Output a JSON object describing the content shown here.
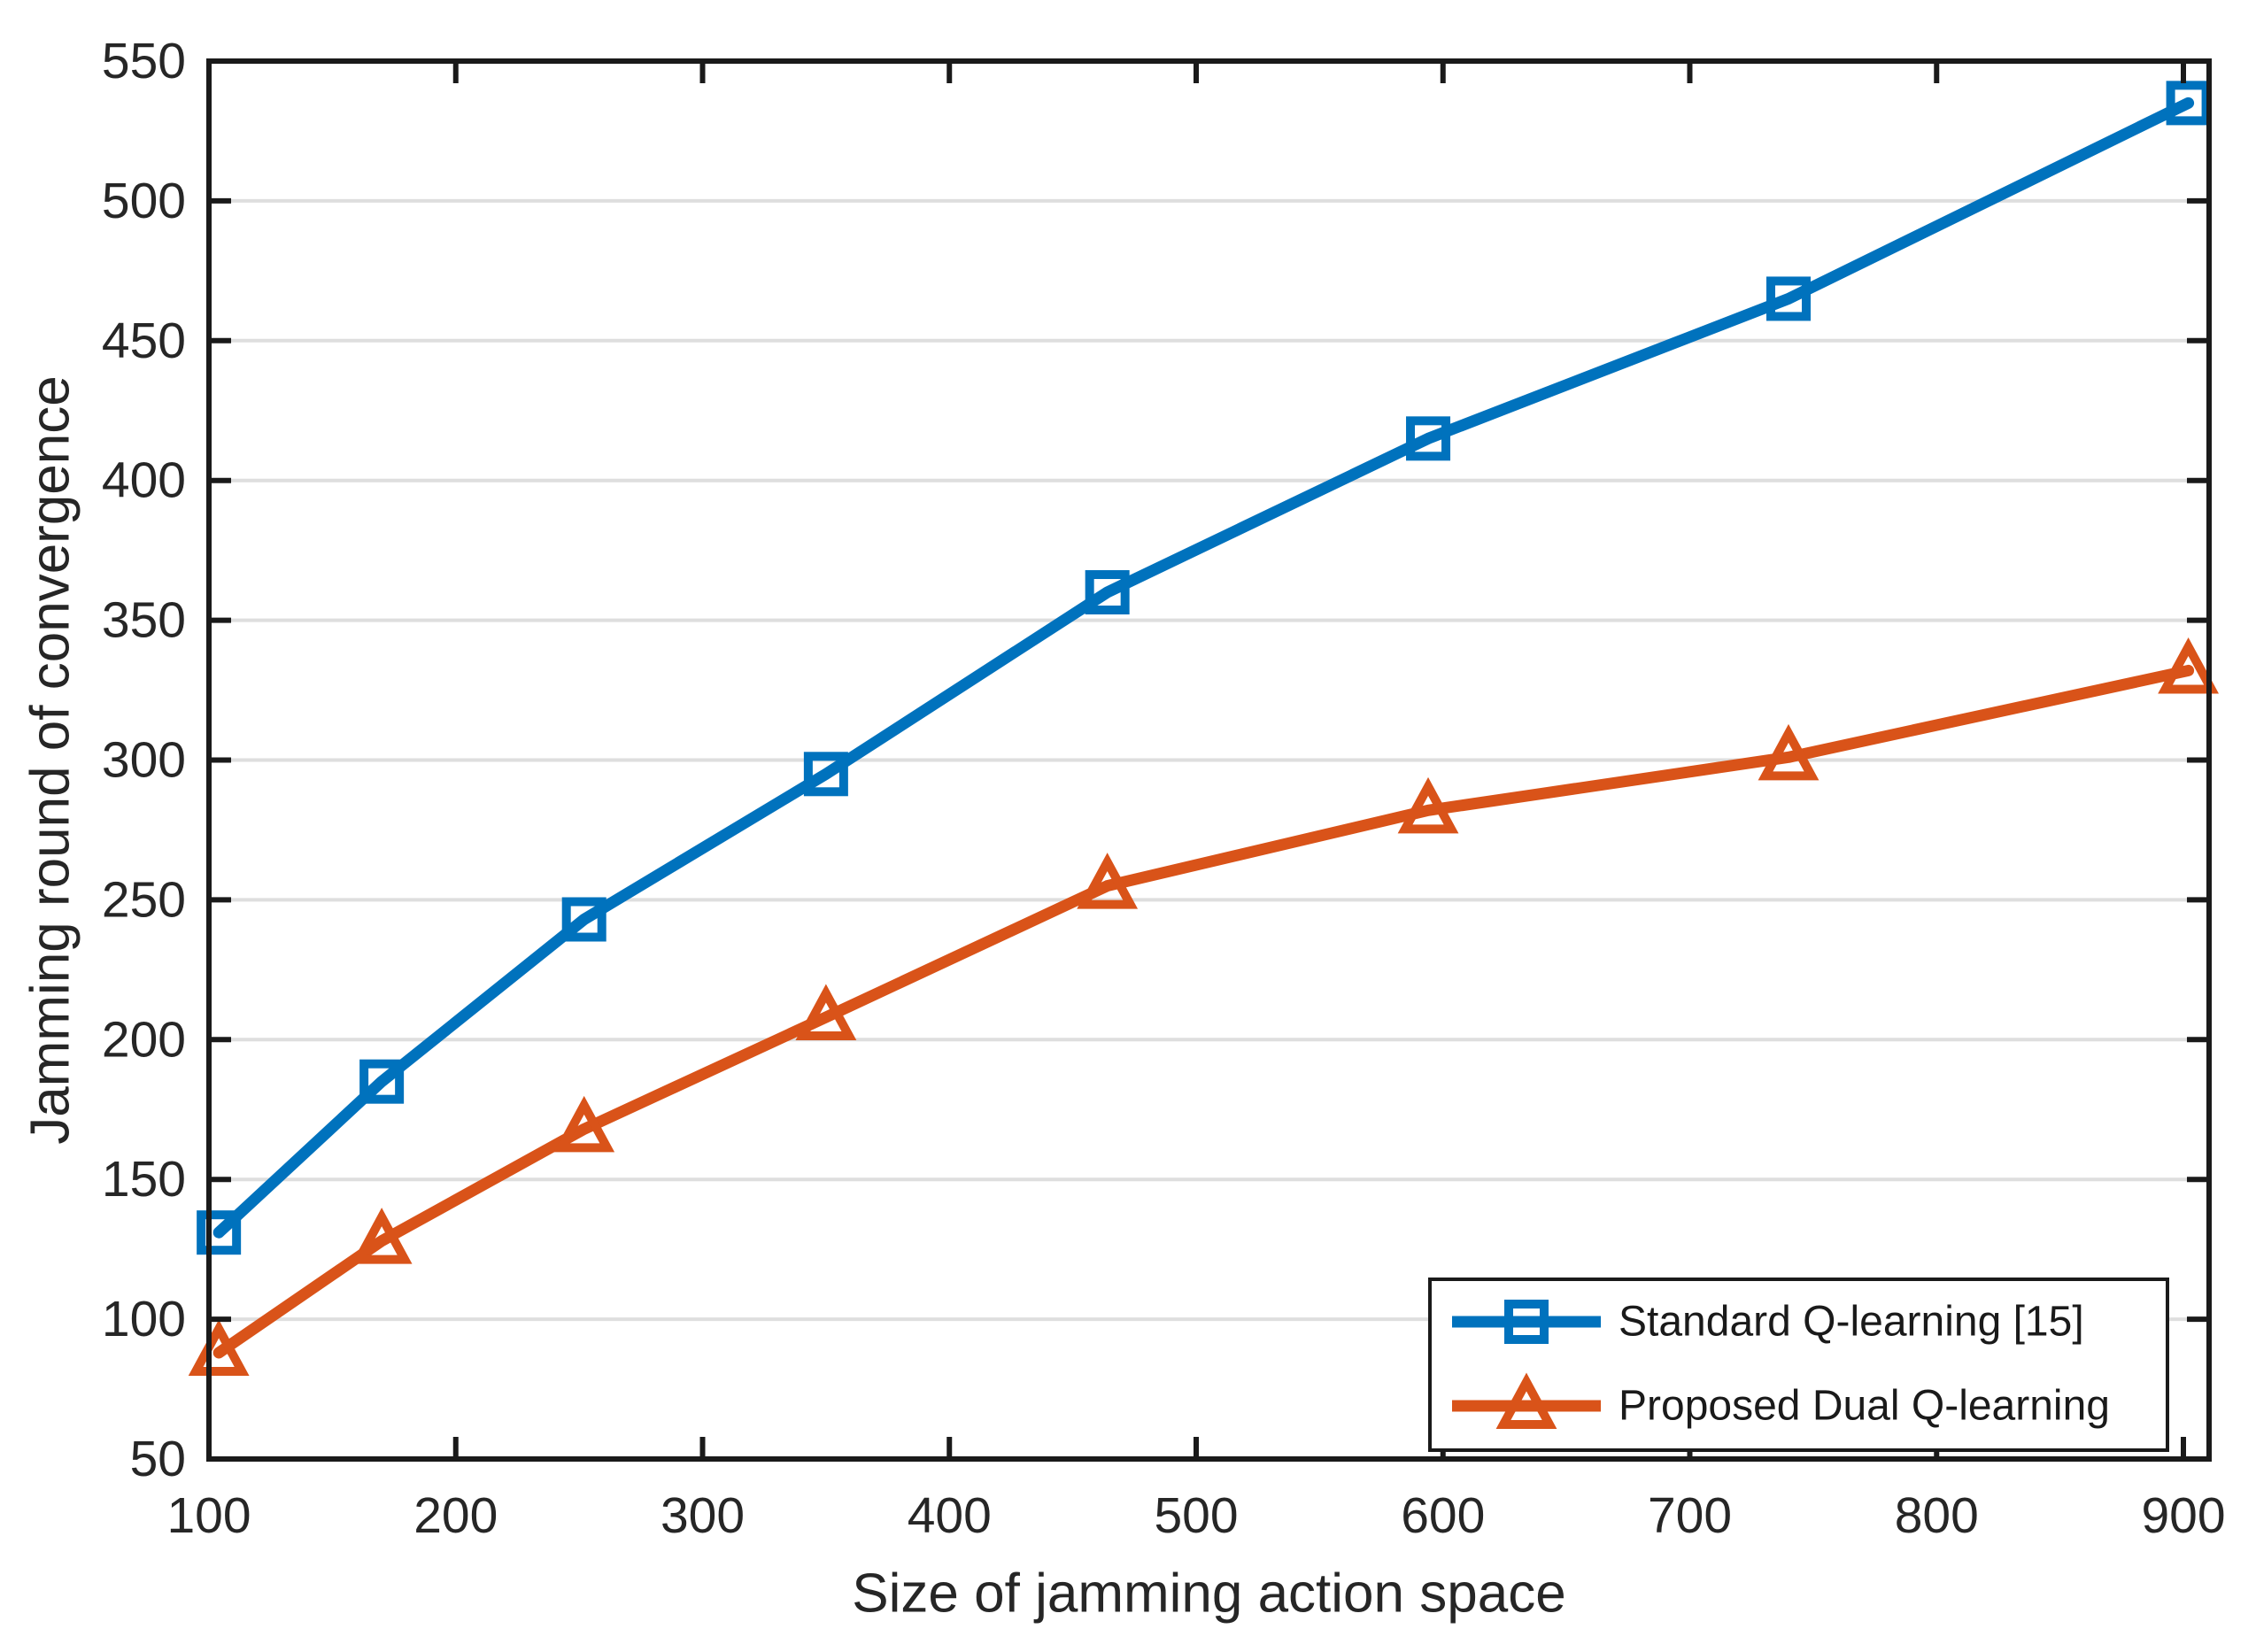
{
  "chart_data": {
    "type": "line",
    "title": "",
    "xlabel": "Size of jamming action space",
    "ylabel": "Jamming round of convergence",
    "x": [
      104,
      170,
      252,
      350,
      464,
      594,
      740,
      902
    ],
    "series": [
      {
        "name": "Standard Q-learning [15]",
        "color": "#0072BD",
        "marker": "square",
        "values": [
          131,
          185,
          243,
          295,
          360,
          415,
          465,
          535
        ]
      },
      {
        "name": "Proposed Dual Q-learning",
        "color": "#D95319",
        "marker": "triangle",
        "values": [
          88,
          128,
          168,
          208,
          255,
          282,
          301,
          332
        ]
      }
    ],
    "xlim": [
      100,
      910
    ],
    "ylim": [
      50,
      550
    ],
    "xticks": [
      100,
      200,
      300,
      400,
      500,
      600,
      700,
      800,
      900
    ],
    "yticks": [
      50,
      100,
      150,
      200,
      250,
      300,
      350,
      400,
      450,
      500,
      550
    ],
    "grid": "horizontal",
    "grid_color": "#DEDEDE",
    "axis_color": "#1A1A1A",
    "text_color": "#262626",
    "legend_position": "bottom-right",
    "legend_entries": [
      "Standard Q-learning [15]",
      "Proposed Dual Q-learning"
    ]
  }
}
